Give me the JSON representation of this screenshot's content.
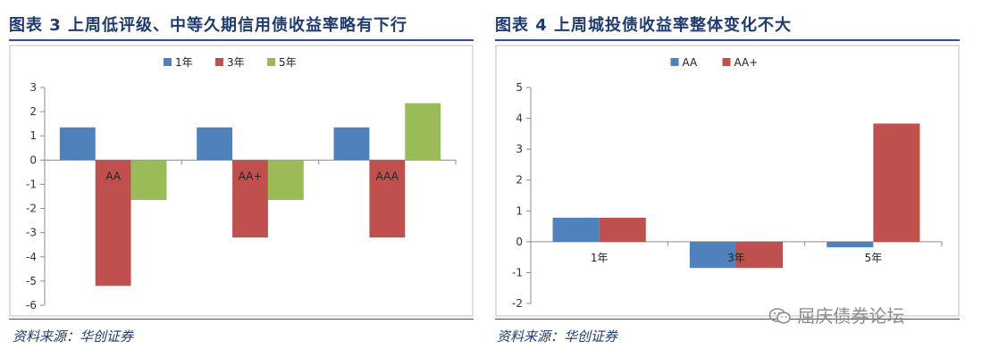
{
  "chart_data": [
    {
      "type": "bar",
      "title": "图表 3    上周低评级、中等久期信用债收益率略有下行",
      "categories": [
        "AA",
        "AA+",
        "AAA"
      ],
      "series": [
        {
          "name": "1年",
          "color": "#4f81bd",
          "values": [
            1.35,
            1.35,
            1.35
          ]
        },
        {
          "name": "3年",
          "color": "#c0504d",
          "values": [
            -5.2,
            -3.2,
            -3.2
          ]
        },
        {
          "name": "5年",
          "color": "#9bbb59",
          "values": [
            -1.65,
            -1.65,
            2.35
          ]
        }
      ],
      "ylim": [
        -6,
        3
      ],
      "yticks": [
        "3",
        "2",
        "1",
        "0",
        "-1",
        "-2",
        "-3",
        "-4",
        "-5",
        "-6"
      ],
      "ytick_values": [
        3,
        2,
        1,
        0,
        -1,
        -2,
        -3,
        -4,
        -5,
        -6
      ],
      "legend_position": "top-center",
      "grid": false,
      "source": "资料来源：华创证券"
    },
    {
      "type": "bar",
      "title": "图表 4    上周城投债收益率整体变化不大",
      "categories": [
        "1年",
        "3年",
        "5年"
      ],
      "series": [
        {
          "name": "AA",
          "color": "#4f81bd",
          "values": [
            0.78,
            -0.85,
            -0.18
          ]
        },
        {
          "name": "AA+",
          "color": "#c0504d",
          "values": [
            0.78,
            -0.85,
            3.83
          ]
        }
      ],
      "ylim": [
        -2,
        5
      ],
      "yticks": [
        "5",
        "4",
        "3",
        "2",
        "1",
        "0",
        "-1",
        "-2"
      ],
      "ytick_values": [
        5,
        4,
        3,
        2,
        1,
        0,
        -1,
        -2
      ],
      "legend_position": "top-center",
      "grid": false,
      "source": "资料来源：华创证券"
    }
  ],
  "watermark": "屈庆债券论坛",
  "watermark_icon": "wechat-icon"
}
